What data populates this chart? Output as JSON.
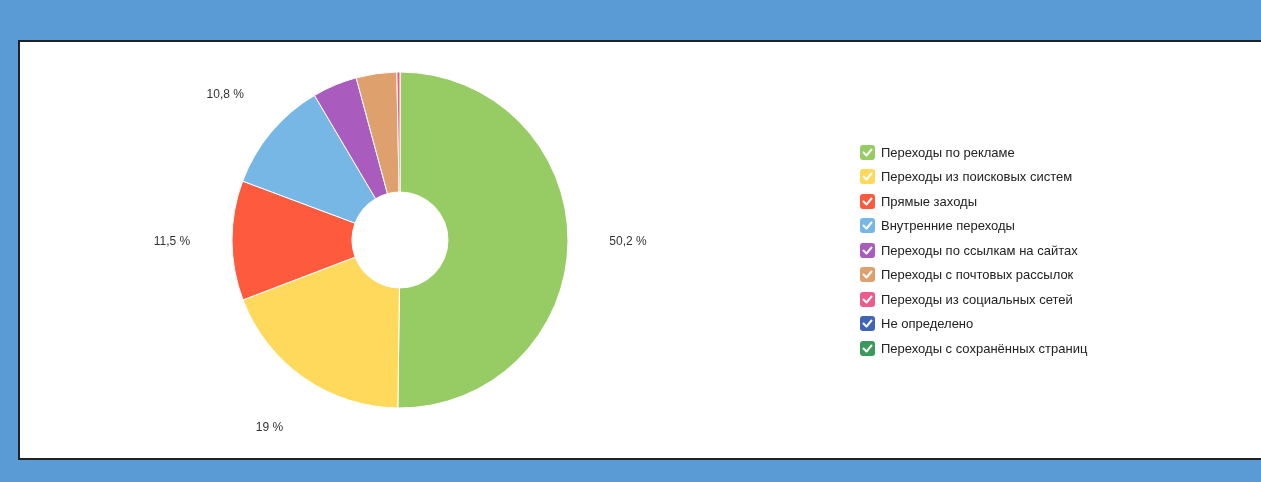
{
  "chart_data": {
    "type": "donut",
    "categories": [
      "Переходы по рекламе",
      "Переходы из поисковых систем",
      "Прямые заходы",
      "Внутренние переходы",
      "Переходы по ссылкам на сайтах",
      "Переходы с почтовых рассылок",
      "Переходы из социальных сетей",
      "Не определено",
      "Переходы с сохранённых страниц"
    ],
    "values": [
      50.2,
      19,
      11.5,
      10.8,
      4.3,
      3.9,
      0.3,
      0,
      0
    ],
    "colors": [
      "#97cc64",
      "#fed95c",
      "#fd5a3e",
      "#77b7e5",
      "#a95bbe",
      "#dea06d",
      "#ee5a8a",
      "#3f63b5",
      "#3a9a5b"
    ],
    "value_labels": [
      "50,2 %",
      "19 %",
      "11,5 %",
      "10,8 %",
      null,
      null,
      null,
      null,
      null
    ],
    "legend": "right"
  }
}
